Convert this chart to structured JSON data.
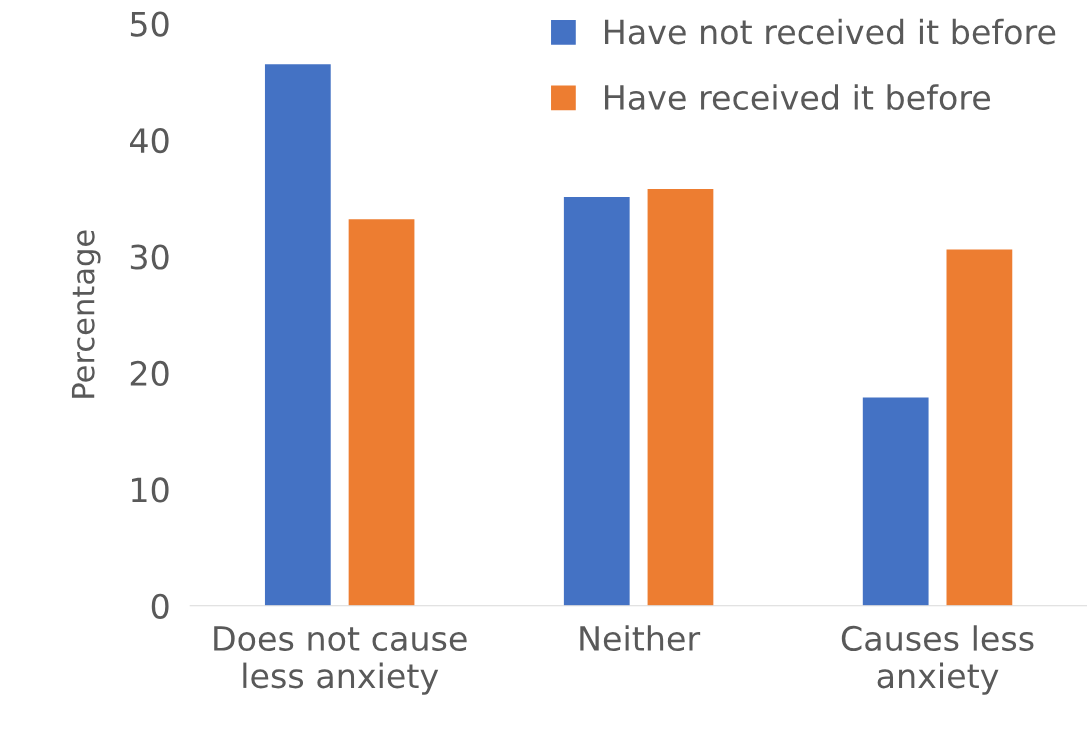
{
  "chart_data": {
    "type": "bar",
    "ylabel": "Percentage",
    "categories": [
      "Does not cause\nless anxiety",
      "Neither",
      "Causes less\nanxiety"
    ],
    "series": [
      {
        "name": "Have not received it before",
        "color": "#4472c4",
        "values": [
          46.5,
          35.1,
          17.9
        ]
      },
      {
        "name": "Have received it before",
        "color": "#ed7d31",
        "values": [
          33.2,
          35.8,
          30.6
        ]
      }
    ],
    "ylim": [
      0,
      50
    ],
    "yticks": [
      0,
      10,
      20,
      30,
      40,
      50
    ],
    "grid": false,
    "legend": "top right"
  }
}
